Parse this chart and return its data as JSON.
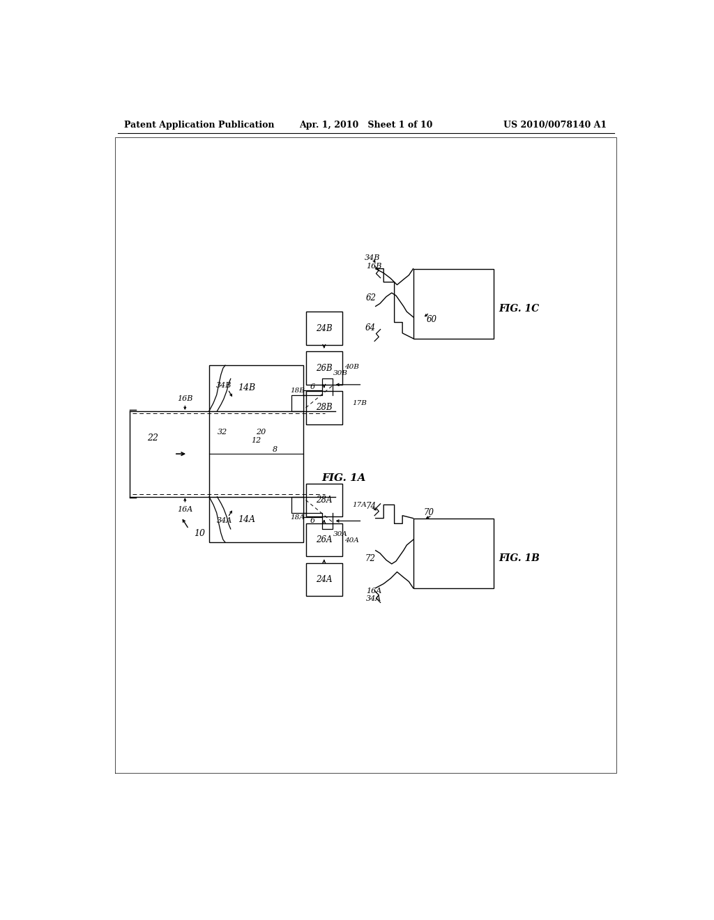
{
  "header_left": "Patent Application Publication",
  "header_mid": "Apr. 1, 2010   Sheet 1 of 10",
  "header_right": "US 2010/0078140 A1",
  "bg_color": "#ffffff"
}
